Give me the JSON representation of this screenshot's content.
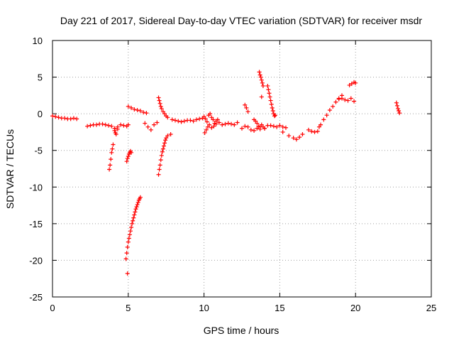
{
  "chart_data": {
    "type": "scatter",
    "title": "Day 221 of 2017, Sidereal Day-to-day VTEC variation (SDTVAR) for receiver msdr",
    "xlabel": "GPS time / hours",
    "ylabel": "SDTVAR / TECUs",
    "xlim": [
      0,
      25
    ],
    "ylim": [
      -25,
      10
    ],
    "xticks": [
      "0",
      "5",
      "10",
      "15",
      "20",
      "25"
    ],
    "yticks": [
      "10",
      "5",
      "0",
      "-5",
      "-10",
      "-15",
      "-20",
      "-25"
    ],
    "grid": true,
    "marker": "+",
    "color": "#ff0000",
    "series": [
      {
        "name": "SDTVAR",
        "x": [
          0.0,
          0.2,
          0.4,
          0.6,
          0.8,
          1.0,
          1.2,
          1.4,
          1.6,
          2.3,
          2.5,
          2.7,
          2.9,
          3.1,
          3.3,
          3.5,
          3.7,
          3.9,
          4.1,
          4.3,
          4.5,
          4.7,
          4.9,
          5.0,
          3.75,
          3.8,
          3.85,
          3.9,
          3.95,
          4.0,
          4.1,
          4.15,
          4.2,
          4.3,
          4.9,
          4.95,
          5.0,
          5.05,
          5.1,
          5.15,
          5.2,
          4.85,
          4.9,
          4.95,
          5.0,
          5.05,
          5.1,
          5.15,
          5.2,
          5.25,
          5.3,
          5.35,
          5.4,
          5.45,
          5.5,
          5.55,
          5.6,
          5.65,
          5.7,
          5.75,
          5.8,
          4.95,
          5.0,
          5.2,
          5.4,
          5.6,
          5.8,
          6.0,
          6.2,
          6.1,
          6.3,
          6.5,
          6.7,
          6.9,
          7.0,
          7.05,
          7.1,
          7.15,
          7.2,
          7.3,
          7.4,
          7.5,
          7.6,
          7.0,
          7.05,
          7.1,
          7.15,
          7.2,
          7.25,
          7.3,
          7.35,
          7.4,
          7.45,
          7.5,
          7.6,
          7.8,
          7.9,
          8.1,
          8.3,
          8.5,
          8.7,
          8.9,
          9.1,
          9.3,
          9.5,
          9.7,
          9.9,
          10.0,
          10.1,
          10.2,
          10.3,
          10.4,
          10.5,
          10.6,
          10.7,
          10.8,
          10.9,
          11.0,
          11.2,
          11.4,
          11.6,
          11.8,
          12.0,
          12.2,
          10.05,
          10.15,
          10.25,
          10.35,
          10.5,
          10.65,
          10.8,
          12.5,
          12.7,
          12.9,
          13.1,
          13.3,
          13.5,
          13.7,
          12.7,
          12.8,
          12.9,
          13.3,
          13.4,
          13.5,
          13.6,
          13.7,
          13.65,
          13.7,
          13.75,
          13.8,
          13.85,
          13.9,
          13.8,
          14.2,
          14.25,
          14.3,
          14.35,
          14.4,
          14.45,
          14.5,
          14.55,
          14.6,
          14.65,
          14.7,
          13.8,
          13.9,
          14.0,
          14.0,
          14.2,
          14.4,
          14.6,
          14.8,
          15.0,
          15.2,
          15.4,
          15.2,
          15.6,
          15.9,
          16.1,
          16.3,
          16.5,
          16.9,
          17.1,
          17.3,
          17.5,
          17.6,
          17.7,
          17.9,
          18.1,
          18.3,
          18.5,
          18.7,
          18.9,
          19.1,
          18.9,
          19.1,
          19.3,
          19.5,
          19.7,
          19.9,
          19.6,
          19.75,
          19.9,
          20.0,
          22.7,
          22.75,
          22.8,
          22.85,
          22.9
        ],
        "y": [
          -0.3,
          -0.4,
          -0.5,
          -0.6,
          -0.6,
          -0.7,
          -0.7,
          -0.6,
          -0.7,
          -1.7,
          -1.6,
          -1.5,
          -1.5,
          -1.4,
          -1.4,
          -1.5,
          -1.6,
          -1.7,
          -2.0,
          -1.8,
          -1.5,
          -1.6,
          -1.7,
          -1.5,
          -7.6,
          -7.0,
          -6.2,
          -5.3,
          -4.8,
          -4.2,
          -2.3,
          -2.6,
          -2.8,
          -2.1,
          -6.5,
          -6.1,
          -5.8,
          -5.5,
          -5.3,
          -5.1,
          -5.3,
          -19.8,
          -19.0,
          -18.2,
          -17.5,
          -17.0,
          -16.5,
          -16.0,
          -15.5,
          -15.0,
          -14.6,
          -14.2,
          -13.8,
          -13.4,
          -13.0,
          -12.7,
          -12.4,
          -12.1,
          -11.8,
          -11.6,
          -11.4,
          -21.8,
          1.0,
          0.8,
          0.6,
          0.5,
          0.4,
          0.2,
          0.1,
          -1.3,
          -1.8,
          -2.2,
          -1.5,
          -1.2,
          2.2,
          1.8,
          1.4,
          1.0,
          0.7,
          0.3,
          0.0,
          -0.3,
          -0.5,
          -8.3,
          -7.6,
          -7.0,
          -6.3,
          -5.7,
          -5.2,
          -4.8,
          -4.4,
          -4.0,
          -3.6,
          -3.3,
          -3.0,
          -2.8,
          -0.8,
          -0.9,
          -1.0,
          -1.1,
          -1.0,
          -0.9,
          -0.9,
          -1.0,
          -0.8,
          -0.7,
          -0.6,
          -0.4,
          -0.7,
          -1.1,
          -0.2,
          0.0,
          -0.5,
          -0.8,
          -1.3,
          -1.0,
          -0.8,
          -1.2,
          -1.5,
          -1.4,
          -1.3,
          -1.4,
          -1.5,
          -1.2,
          -2.6,
          -2.2,
          -1.8,
          -1.5,
          -1.9,
          -1.7,
          -1.4,
          -2.0,
          -1.7,
          -1.8,
          -2.2,
          -2.3,
          -2.0,
          -1.8,
          1.2,
          0.8,
          0.3,
          -0.8,
          -1.0,
          -1.3,
          -1.7,
          -2.1,
          5.7,
          5.3,
          5.0,
          4.6,
          4.2,
          3.8,
          2.3,
          3.8,
          3.3,
          2.8,
          2.3,
          1.8,
          1.3,
          0.8,
          0.4,
          0.0,
          -0.3,
          -0.2,
          -1.5,
          -1.8,
          -2.0,
          -2.0,
          -1.6,
          -1.6,
          -1.7,
          -1.8,
          -1.6,
          -1.8,
          -1.9,
          -2.5,
          -3.0,
          -3.3,
          -3.5,
          -3.2,
          -2.8,
          -2.2,
          -2.4,
          -2.5,
          -2.4,
          -1.8,
          -1.5,
          -0.8,
          -0.2,
          0.5,
          1.0,
          1.6,
          2.1,
          2.5,
          2.0,
          2.1,
          1.9,
          1.8,
          2.1,
          1.7,
          3.9,
          4.1,
          4.3,
          4.2,
          1.5,
          1.1,
          0.7,
          0.4,
          0.1
        ]
      }
    ]
  }
}
